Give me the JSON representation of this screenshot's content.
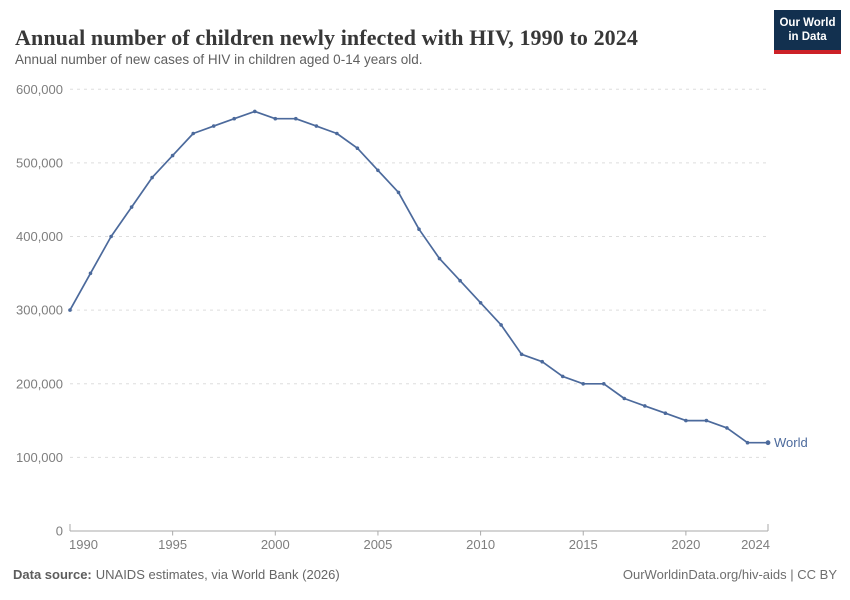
{
  "header": {
    "title": "Annual number of children newly infected with HIV, 1990 to 2024",
    "subtitle": "Annual number of new cases of HIV in children aged 0-14 years old.",
    "logo": {
      "line1": "Our World",
      "line2": "in Data"
    }
  },
  "chart_data": {
    "type": "line",
    "title": "Annual number of children newly infected with HIV, 1990 to 2024",
    "xlabel": "",
    "ylabel": "",
    "xlim": [
      1990,
      2024
    ],
    "ylim": [
      0,
      600000
    ],
    "grid": "horizontal-dashed",
    "legend_position": "end-of-line",
    "x_ticks": [
      1990,
      1995,
      2000,
      2005,
      2010,
      2015,
      2020,
      2024
    ],
    "y_ticks": [
      0,
      100000,
      200000,
      300000,
      400000,
      500000,
      600000
    ],
    "y_tick_labels": [
      "0",
      "100,000",
      "200,000",
      "300,000",
      "400,000",
      "500,000",
      "600,000"
    ],
    "series": [
      {
        "name": "World",
        "color": "#4C6A9C",
        "x": [
          1990,
          1991,
          1992,
          1993,
          1994,
          1995,
          1996,
          1997,
          1998,
          1999,
          2000,
          2001,
          2002,
          2003,
          2004,
          2005,
          2006,
          2007,
          2008,
          2009,
          2010,
          2011,
          2012,
          2013,
          2014,
          2015,
          2016,
          2017,
          2018,
          2019,
          2020,
          2021,
          2022,
          2023,
          2024
        ],
        "values": [
          300000,
          350000,
          400000,
          440000,
          480000,
          510000,
          540000,
          550000,
          560000,
          570000,
          560000,
          560000,
          550000,
          540000,
          520000,
          490000,
          460000,
          410000,
          370000,
          340000,
          310000,
          280000,
          240000,
          230000,
          210000,
          200000,
          200000,
          180000,
          170000,
          160000,
          150000,
          150000,
          140000,
          120000,
          120000
        ]
      }
    ],
    "end_label": "World"
  },
  "footer": {
    "source_label": "Data source:",
    "source_text": "UNAIDS estimates, via World Bank (2026)",
    "right_text": "OurWorldinData.org/hiv-aids | CC BY"
  },
  "colors": {
    "line": "#4C6A9C",
    "grid": "#dddddd",
    "axis": "#aaaaaa",
    "tick_text": "#7e7e7e",
    "logo_bg": "#12304f",
    "logo_bar": "#cc2127"
  }
}
